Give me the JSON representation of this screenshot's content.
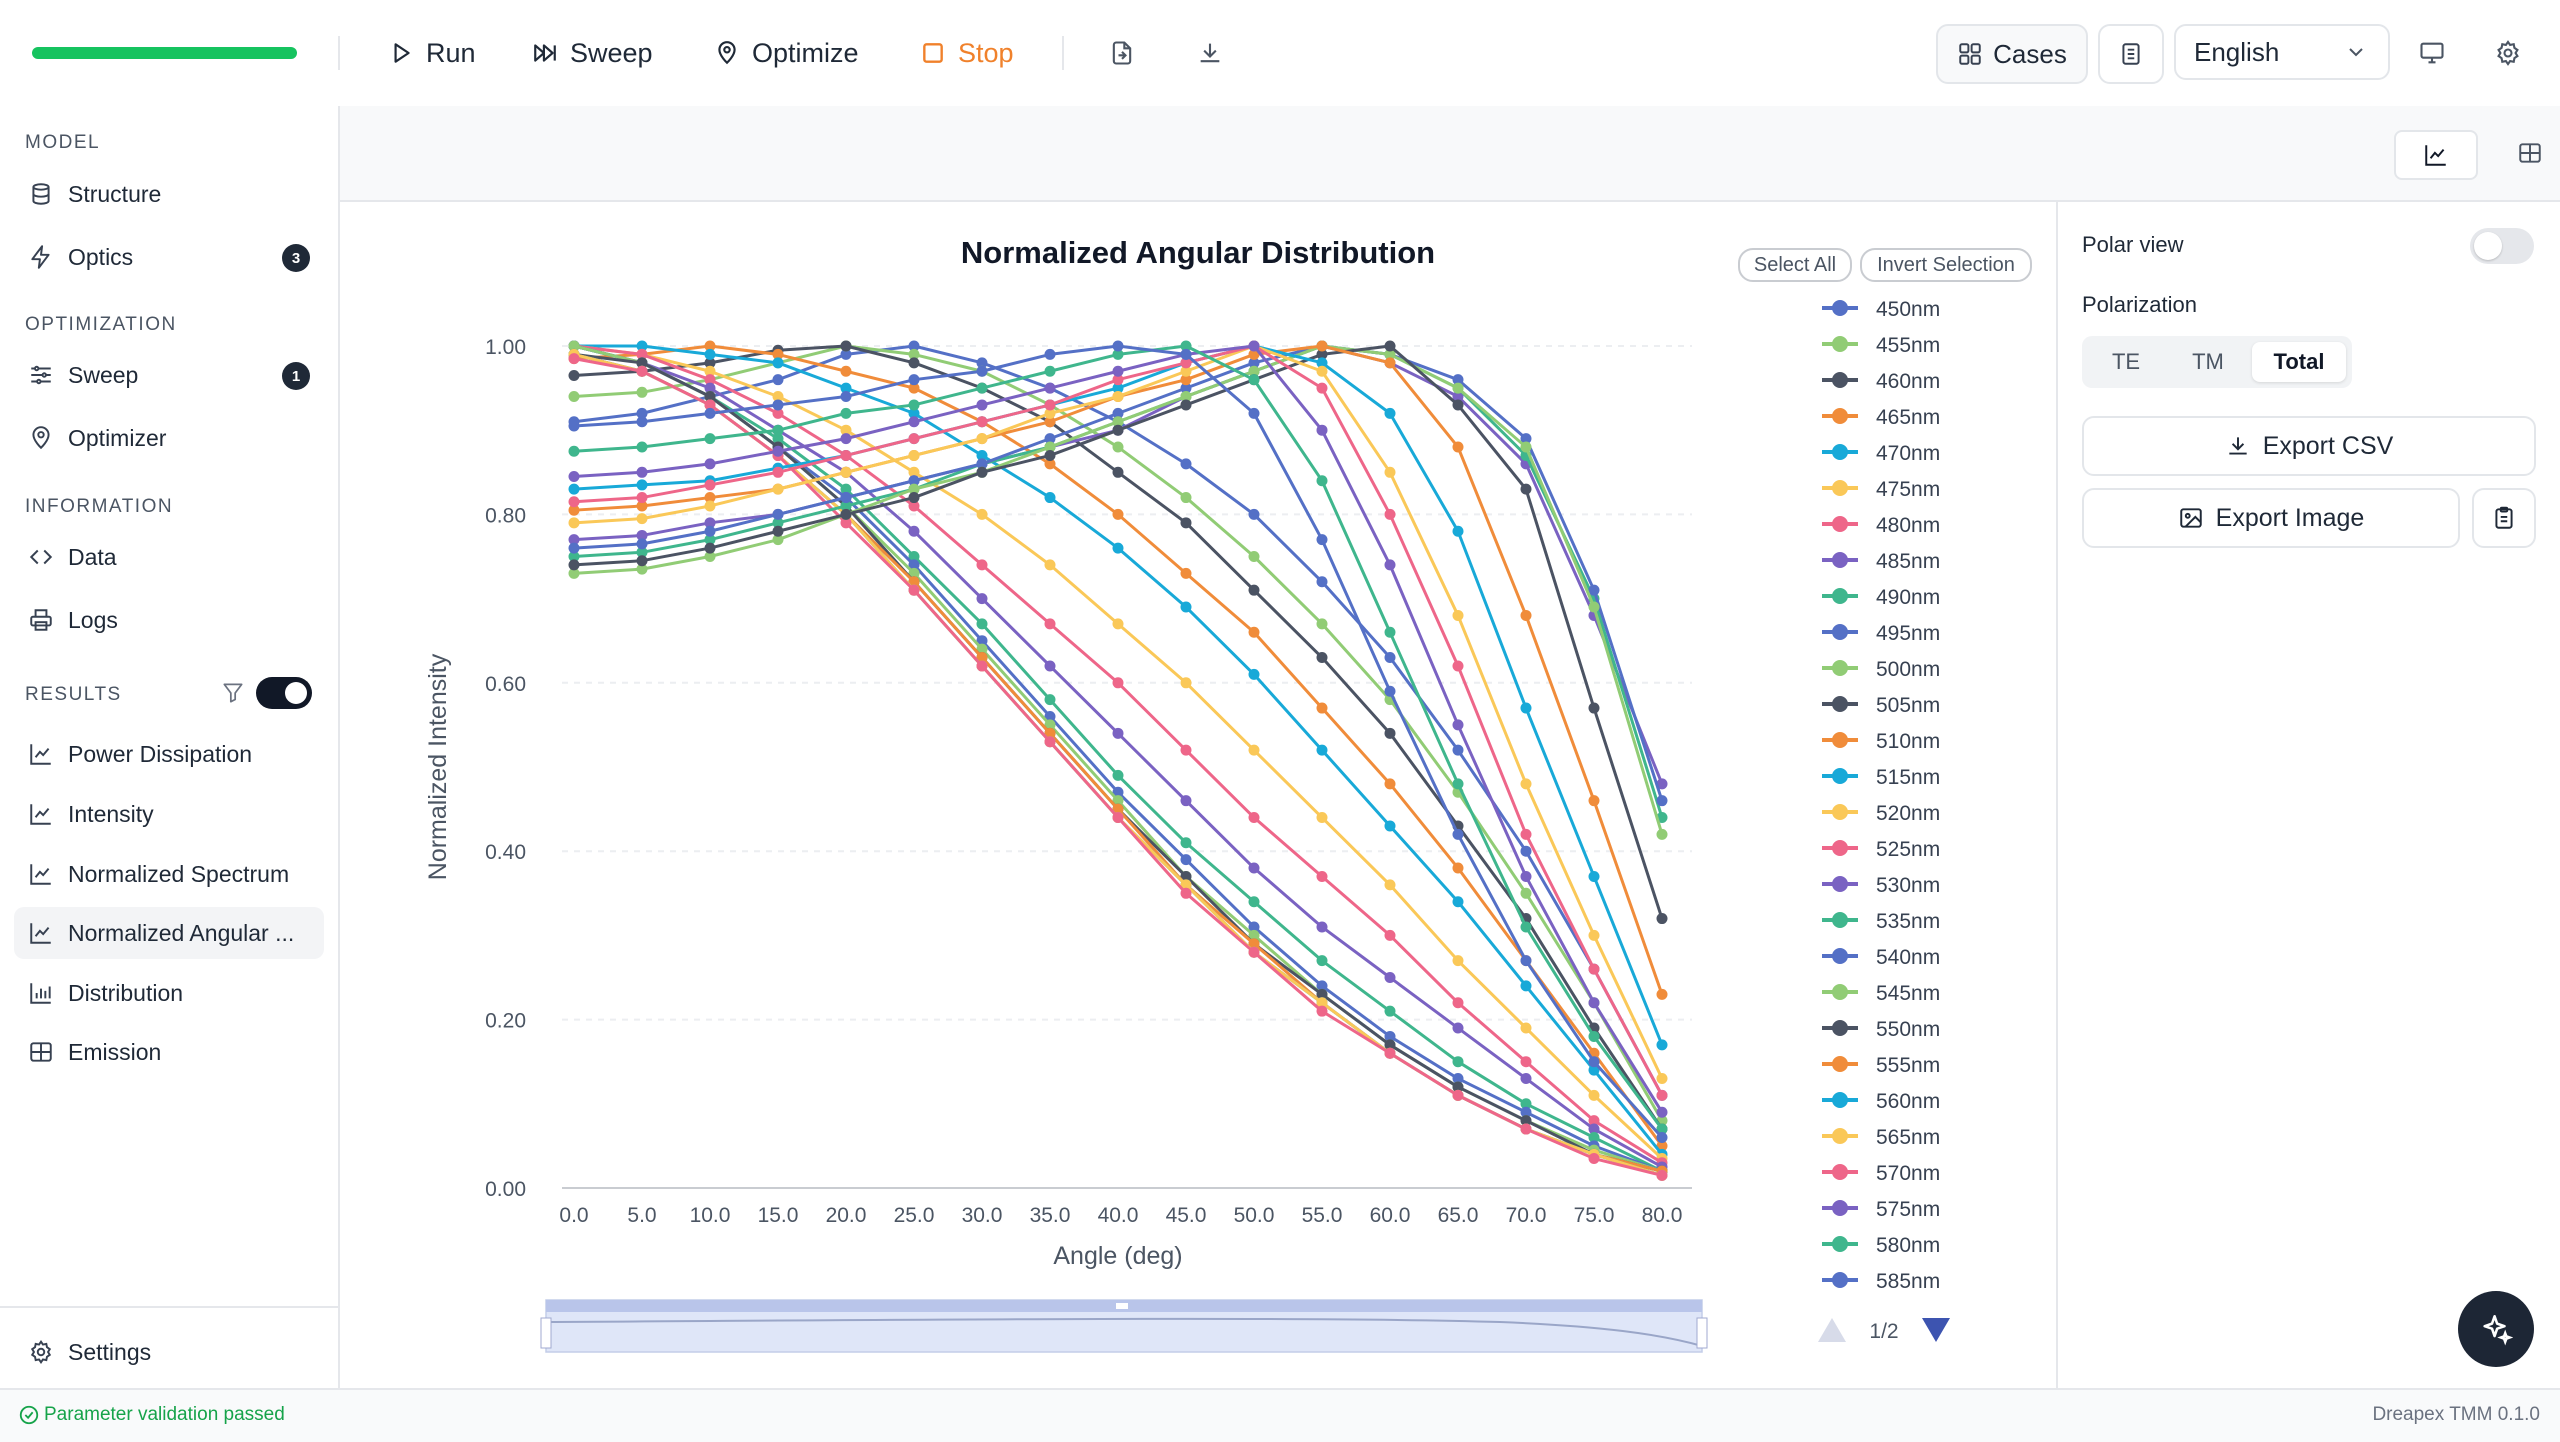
{
  "toolbar": {
    "run": "Run",
    "sweep": "Sweep",
    "optimize": "Optimize",
    "stop": "Stop",
    "progress": 1.0,
    "cases": "Cases",
    "language": "English"
  },
  "sidebar": {
    "model_header": "MODEL",
    "structure": "Structure",
    "optics": "Optics",
    "optics_badge": "3",
    "optimization_header": "OPTIMIZATION",
    "sweep": "Sweep",
    "sweep_badge": "1",
    "optimizer": "Optimizer",
    "information_header": "INFORMATION",
    "data": "Data",
    "logs": "Logs",
    "results_header": "RESULTS",
    "results_filter_on": true,
    "power_dissipation": "Power Dissipation",
    "intensity": "Intensity",
    "normalized_spectrum": "Normalized Spectrum",
    "normalized_angular": "Normalized Angular ...",
    "distribution": "Distribution",
    "emission": "Emission",
    "settings": "Settings"
  },
  "chart_controls": {
    "select_all": "Select All",
    "invert_selection": "Invert Selection",
    "legend_page": "1/2"
  },
  "right_panel": {
    "polar_view": "Polar view",
    "polar_view_on": false,
    "polarization": "Polarization",
    "pol_options": [
      "TE",
      "TM",
      "Total"
    ],
    "pol_selected": "Total",
    "export_csv": "Export CSV",
    "export_image": "Export Image"
  },
  "status": {
    "message": "Parameter validation passed",
    "version": "Dreapex TMM 0.1.0"
  },
  "chart_data": {
    "type": "line",
    "title": "Normalized Angular Distribution",
    "xlabel": "Angle (deg)",
    "ylabel": "Normalized Intensity",
    "x": [
      0,
      5,
      10,
      15,
      20,
      25,
      30,
      35,
      40,
      45,
      50,
      55,
      60,
      65,
      70,
      75,
      80
    ],
    "x_ticks": [
      "0.0",
      "5.0",
      "10.0",
      "15.0",
      "20.0",
      "25.0",
      "30.0",
      "35.0",
      "40.0",
      "45.0",
      "50.0",
      "55.0",
      "60.0",
      "65.0",
      "70.0",
      "75.0",
      "80.0"
    ],
    "ylim": [
      0,
      1.0
    ],
    "y_ticks": [
      "0.00",
      "0.20",
      "0.40",
      "0.60",
      "0.80",
      "1.00"
    ],
    "legend_position": "right",
    "colors": [
      "#5470c6",
      "#91cc75",
      "#4b5363",
      "#f08c3a",
      "#18a9d8",
      "#fac858",
      "#ee6689",
      "#7a62c2",
      "#3fb68d"
    ],
    "series": [
      {
        "name": "450nm",
        "values": [
          0.91,
          0.92,
          0.94,
          0.96,
          0.99,
          1.0,
          0.98,
          0.95,
          0.91,
          0.86,
          0.8,
          0.72,
          0.63,
          0.52,
          0.4,
          0.26,
          0.11
        ]
      },
      {
        "name": "455nm",
        "values": [
          0.94,
          0.945,
          0.96,
          0.98,
          1.0,
          0.99,
          0.97,
          0.93,
          0.88,
          0.82,
          0.75,
          0.67,
          0.58,
          0.47,
          0.35,
          0.22,
          0.08
        ]
      },
      {
        "name": "460nm",
        "values": [
          0.965,
          0.97,
          0.98,
          0.995,
          1.0,
          0.98,
          0.95,
          0.91,
          0.85,
          0.79,
          0.71,
          0.63,
          0.54,
          0.43,
          0.32,
          0.19,
          0.07
        ]
      },
      {
        "name": "465nm",
        "values": [
          0.985,
          0.99,
          1.0,
          0.99,
          0.97,
          0.95,
          0.91,
          0.86,
          0.8,
          0.73,
          0.66,
          0.57,
          0.48,
          0.38,
          0.27,
          0.16,
          0.05
        ]
      },
      {
        "name": "470nm",
        "values": [
          1.0,
          1.0,
          0.99,
          0.98,
          0.95,
          0.92,
          0.87,
          0.82,
          0.76,
          0.69,
          0.61,
          0.52,
          0.43,
          0.34,
          0.24,
          0.14,
          0.04
        ]
      },
      {
        "name": "475nm",
        "values": [
          1.0,
          0.99,
          0.97,
          0.94,
          0.9,
          0.85,
          0.8,
          0.74,
          0.67,
          0.6,
          0.52,
          0.44,
          0.36,
          0.27,
          0.19,
          0.11,
          0.035
        ]
      },
      {
        "name": "480nm",
        "values": [
          1.0,
          0.99,
          0.96,
          0.92,
          0.87,
          0.81,
          0.74,
          0.67,
          0.6,
          0.52,
          0.44,
          0.37,
          0.3,
          0.22,
          0.15,
          0.08,
          0.03
        ]
      },
      {
        "name": "485nm",
        "values": [
          1.0,
          0.98,
          0.95,
          0.9,
          0.85,
          0.78,
          0.7,
          0.62,
          0.54,
          0.46,
          0.38,
          0.31,
          0.25,
          0.19,
          0.13,
          0.07,
          0.025
        ]
      },
      {
        "name": "490nm",
        "values": [
          1.0,
          0.98,
          0.94,
          0.89,
          0.83,
          0.75,
          0.67,
          0.58,
          0.49,
          0.41,
          0.34,
          0.27,
          0.21,
          0.15,
          0.1,
          0.06,
          0.02
        ]
      },
      {
        "name": "495nm",
        "values": [
          1.0,
          0.98,
          0.94,
          0.88,
          0.82,
          0.74,
          0.65,
          0.56,
          0.47,
          0.39,
          0.31,
          0.24,
          0.18,
          0.13,
          0.09,
          0.05,
          0.02
        ]
      },
      {
        "name": "500nm",
        "values": [
          1.0,
          0.98,
          0.94,
          0.88,
          0.81,
          0.73,
          0.64,
          0.55,
          0.46,
          0.37,
          0.3,
          0.23,
          0.17,
          0.12,
          0.08,
          0.045,
          0.02
        ]
      },
      {
        "name": "505nm",
        "values": [
          0.99,
          0.98,
          0.94,
          0.88,
          0.81,
          0.72,
          0.63,
          0.54,
          0.45,
          0.37,
          0.29,
          0.23,
          0.17,
          0.12,
          0.08,
          0.04,
          0.02
        ]
      },
      {
        "name": "510nm",
        "values": [
          0.99,
          0.97,
          0.93,
          0.87,
          0.8,
          0.72,
          0.63,
          0.54,
          0.45,
          0.36,
          0.29,
          0.22,
          0.16,
          0.11,
          0.07,
          0.04,
          0.02
        ]
      },
      {
        "name": "515nm",
        "values": [
          0.99,
          0.97,
          0.93,
          0.87,
          0.8,
          0.71,
          0.62,
          0.53,
          0.44,
          0.36,
          0.28,
          0.22,
          0.16,
          0.11,
          0.07,
          0.04,
          0.015
        ]
      },
      {
        "name": "520nm",
        "values": [
          0.99,
          0.97,
          0.93,
          0.87,
          0.8,
          0.71,
          0.62,
          0.53,
          0.44,
          0.36,
          0.28,
          0.22,
          0.16,
          0.11,
          0.07,
          0.04,
          0.015
        ]
      },
      {
        "name": "525nm",
        "values": [
          0.985,
          0.97,
          0.93,
          0.87,
          0.79,
          0.71,
          0.62,
          0.53,
          0.44,
          0.35,
          0.28,
          0.21,
          0.16,
          0.11,
          0.07,
          0.035,
          0.015
        ]
      },
      {
        "name": "530nm",
        "values": [
          0.77,
          0.775,
          0.79,
          0.8,
          0.82,
          0.84,
          0.86,
          0.88,
          0.9,
          0.94,
          0.97,
          1.0,
          0.98,
          0.94,
          0.86,
          0.68,
          0.48
        ]
      },
      {
        "name": "535nm",
        "values": [
          0.75,
          0.755,
          0.77,
          0.79,
          0.81,
          0.83,
          0.86,
          0.88,
          0.91,
          0.94,
          0.97,
          1.0,
          0.99,
          0.95,
          0.87,
          0.7,
          0.44
        ]
      },
      {
        "name": "540nm",
        "values": [
          0.76,
          0.765,
          0.78,
          0.8,
          0.82,
          0.84,
          0.86,
          0.89,
          0.92,
          0.95,
          0.98,
          1.0,
          0.99,
          0.96,
          0.89,
          0.71,
          0.46
        ]
      },
      {
        "name": "545nm",
        "values": [
          0.73,
          0.735,
          0.75,
          0.77,
          0.8,
          0.83,
          0.85,
          0.88,
          0.91,
          0.94,
          0.97,
          1.0,
          0.99,
          0.95,
          0.88,
          0.69,
          0.42
        ]
      },
      {
        "name": "550nm",
        "values": [
          0.74,
          0.745,
          0.76,
          0.78,
          0.8,
          0.82,
          0.85,
          0.87,
          0.9,
          0.93,
          0.96,
          0.99,
          1.0,
          0.93,
          0.83,
          0.57,
          0.32
        ]
      },
      {
        "name": "555nm",
        "values": [
          0.805,
          0.81,
          0.82,
          0.83,
          0.85,
          0.87,
          0.89,
          0.91,
          0.94,
          0.96,
          0.99,
          1.0,
          0.98,
          0.88,
          0.68,
          0.46,
          0.23
        ]
      },
      {
        "name": "560nm",
        "values": [
          0.83,
          0.835,
          0.84,
          0.855,
          0.87,
          0.89,
          0.91,
          0.93,
          0.95,
          0.98,
          1.0,
          0.98,
          0.92,
          0.78,
          0.57,
          0.37,
          0.17
        ]
      },
      {
        "name": "565nm",
        "values": [
          0.79,
          0.795,
          0.81,
          0.83,
          0.85,
          0.87,
          0.89,
          0.92,
          0.94,
          0.97,
          1.0,
          0.97,
          0.85,
          0.68,
          0.48,
          0.3,
          0.13
        ]
      },
      {
        "name": "570nm",
        "values": [
          0.815,
          0.82,
          0.835,
          0.85,
          0.87,
          0.89,
          0.91,
          0.93,
          0.96,
          0.98,
          1.0,
          0.95,
          0.8,
          0.62,
          0.42,
          0.26,
          0.11
        ]
      },
      {
        "name": "575nm",
        "values": [
          0.845,
          0.85,
          0.86,
          0.875,
          0.89,
          0.91,
          0.93,
          0.95,
          0.97,
          0.99,
          1.0,
          0.9,
          0.74,
          0.55,
          0.37,
          0.22,
          0.09
        ]
      },
      {
        "name": "580nm",
        "values": [
          0.875,
          0.88,
          0.89,
          0.9,
          0.92,
          0.93,
          0.95,
          0.97,
          0.99,
          1.0,
          0.96,
          0.84,
          0.66,
          0.48,
          0.31,
          0.18,
          0.07
        ]
      },
      {
        "name": "585nm",
        "values": [
          0.905,
          0.91,
          0.92,
          0.93,
          0.94,
          0.96,
          0.97,
          0.99,
          1.0,
          0.99,
          0.92,
          0.77,
          0.59,
          0.42,
          0.27,
          0.15,
          0.06
        ]
      }
    ]
  }
}
